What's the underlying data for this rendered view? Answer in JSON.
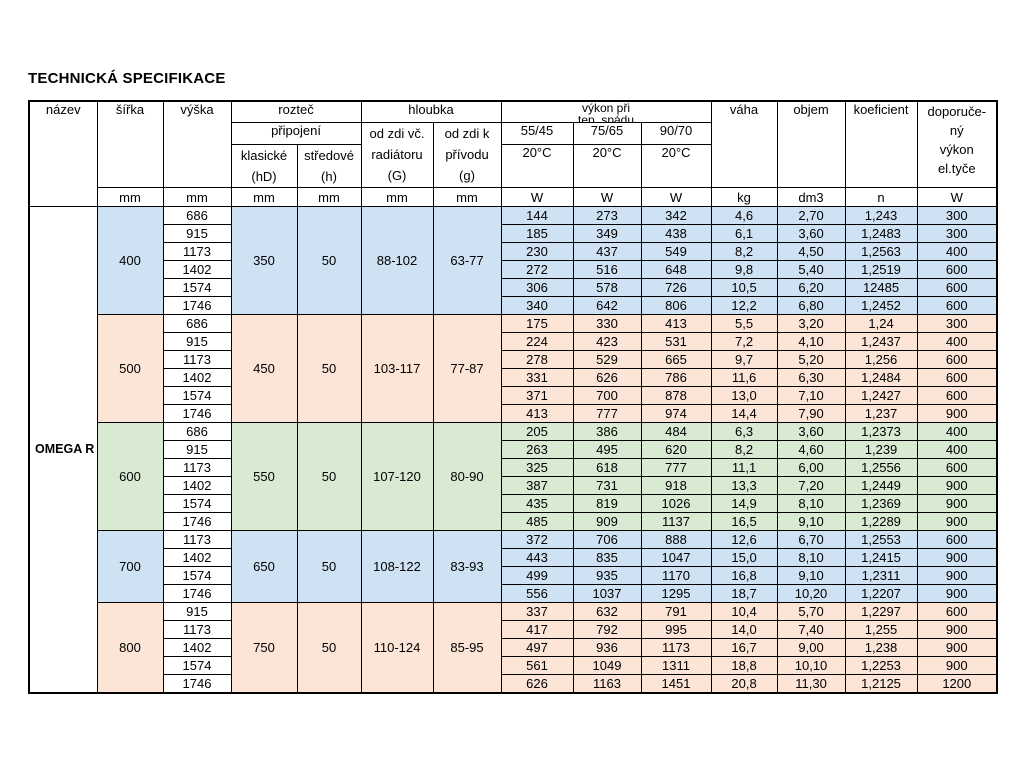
{
  "title": "TECHNICKÁ SPECIFIKACE",
  "table": {
    "product_name": "OMEGA R",
    "colors": {
      "blue": "#cfe2f3",
      "peach": "#fce4d6",
      "green": "#d9ead3"
    },
    "header": {
      "nazev": "název",
      "sirka": "šířka",
      "vyska": "výška",
      "roztec": "rozteč",
      "pripojeni": "připojení",
      "klasicke_l1": "klasické",
      "klasicke_l2": "(hD)",
      "stredove_l1": "středové",
      "stredove_l2": "(h)",
      "hloubka": "hloubka",
      "odzdi_g_l1": "od zdi  vč.",
      "odzdi_g_l2": "radiátoru",
      "odzdi_g_l3": "(G)",
      "odzdi_p_l1": "od zdi  k",
      "odzdi_p_l2": "přívodu",
      "odzdi_p_l3": "(g)",
      "vykon_l1": "výkon při",
      "vykon_l2": "tep. spádu",
      "temp_5545": "55/45",
      "temp_7565": "75/65",
      "temp_9070": "90/70",
      "deg_1": "20°C",
      "deg_2": "20°C",
      "deg_3": "20°C",
      "vaha": "váha",
      "objem": "objem",
      "koeficient": "koeficient",
      "dopor_l1": "doporuče-",
      "dopor_l2": "ný",
      "dopor_l3": "výkon",
      "dopor_l4": "el.tyče",
      "units": [
        "mm",
        "mm",
        "mm",
        "mm",
        "mm",
        "mm",
        "W",
        "W",
        "W",
        "kg",
        "dm3",
        "n",
        "W"
      ]
    },
    "groups": [
      {
        "sirka": "400",
        "color": "blue",
        "roztec_klasicke": "350",
        "roztec_stredove": "50",
        "hloubka_g": "88-102",
        "hloubka_p": "63-77",
        "rows": [
          [
            "686",
            "144",
            "273",
            "342",
            "4,6",
            "2,70",
            "1,243",
            "300"
          ],
          [
            "915",
            "185",
            "349",
            "438",
            "6,1",
            "3,60",
            "1,2483",
            "300"
          ],
          [
            "1173",
            "230",
            "437",
            "549",
            "8,2",
            "4,50",
            "1,2563",
            "400"
          ],
          [
            "1402",
            "272",
            "516",
            "648",
            "9,8",
            "5,40",
            "1,2519",
            "600"
          ],
          [
            "1574",
            "306",
            "578",
            "726",
            "10,5",
            "6,20",
            "12485",
            "600"
          ],
          [
            "1746",
            "340",
            "642",
            "806",
            "12,2",
            "6,80",
            "1,2452",
            "600"
          ]
        ]
      },
      {
        "sirka": "500",
        "color": "peach",
        "roztec_klasicke": "450",
        "roztec_stredove": "50",
        "hloubka_g": "103-117",
        "hloubka_p": "77-87",
        "rows": [
          [
            "686",
            "175",
            "330",
            "413",
            "5,5",
            "3,20",
            "1,24",
            "300"
          ],
          [
            "915",
            "224",
            "423",
            "531",
            "7,2",
            "4,10",
            "1,2437",
            "400"
          ],
          [
            "1173",
            "278",
            "529",
            "665",
            "9,7",
            "5,20",
            "1,256",
            "600"
          ],
          [
            "1402",
            "331",
            "626",
            "786",
            "11,6",
            "6,30",
            "1,2484",
            "600"
          ],
          [
            "1574",
            "371",
            "700",
            "878",
            "13,0",
            "7,10",
            "1,2427",
            "600"
          ],
          [
            "1746",
            "413",
            "777",
            "974",
            "14,4",
            "7,90",
            "1,237",
            "900"
          ]
        ]
      },
      {
        "sirka": "600",
        "color": "green",
        "roztec_klasicke": "550",
        "roztec_stredove": "50",
        "hloubka_g": "107-120",
        "hloubka_p": "80-90",
        "rows": [
          [
            "686",
            "205",
            "386",
            "484",
            "6,3",
            "3,60",
            "1,2373",
            "400"
          ],
          [
            "915",
            "263",
            "495",
            "620",
            "8,2",
            "4,60",
            "1,239",
            "400"
          ],
          [
            "1173",
            "325",
            "618",
            "777",
            "11,1",
            "6,00",
            "1,2556",
            "600"
          ],
          [
            "1402",
            "387",
            "731",
            "918",
            "13,3",
            "7,20",
            "1,2449",
            "900"
          ],
          [
            "1574",
            "435",
            "819",
            "1026",
            "14,9",
            "8,10",
            "1,2369",
            "900"
          ],
          [
            "1746",
            "485",
            "909",
            "1137",
            "16,5",
            "9,10",
            "1,2289",
            "900"
          ]
        ]
      },
      {
        "sirka": "700",
        "color": "blue",
        "roztec_klasicke": "650",
        "roztec_stredove": "50",
        "hloubka_g": "108-122",
        "hloubka_p": "83-93",
        "rows": [
          [
            "1173",
            "372",
            "706",
            "888",
            "12,6",
            "6,70",
            "1,2553",
            "600"
          ],
          [
            "1402",
            "443",
            "835",
            "1047",
            "15,0",
            "8,10",
            "1,2415",
            "900"
          ],
          [
            "1574",
            "499",
            "935",
            "1170",
            "16,8",
            "9,10",
            "1,2311",
            "900"
          ],
          [
            "1746",
            "556",
            "1037",
            "1295",
            "18,7",
            "10,20",
            "1,2207",
            "900"
          ]
        ]
      },
      {
        "sirka": "800",
        "color": "peach",
        "roztec_klasicke": "750",
        "roztec_stredove": "50",
        "hloubka_g": "110-124",
        "hloubka_p": "85-95",
        "rows": [
          [
            "915",
            "337",
            "632",
            "791",
            "10,4",
            "5,70",
            "1,2297",
            "600"
          ],
          [
            "1173",
            "417",
            "792",
            "995",
            "14,0",
            "7,40",
            "1,255",
            "900"
          ],
          [
            "1402",
            "497",
            "936",
            "1173",
            "16,7",
            "9,00",
            "1,238",
            "900"
          ],
          [
            "1574",
            "561",
            "1049",
            "1311",
            "18,8",
            "10,10",
            "1,2253",
            "900"
          ],
          [
            "1746",
            "626",
            "1163",
            "1451",
            "20,8",
            "11,30",
            "1,2125",
            "1200"
          ]
        ]
      }
    ]
  }
}
